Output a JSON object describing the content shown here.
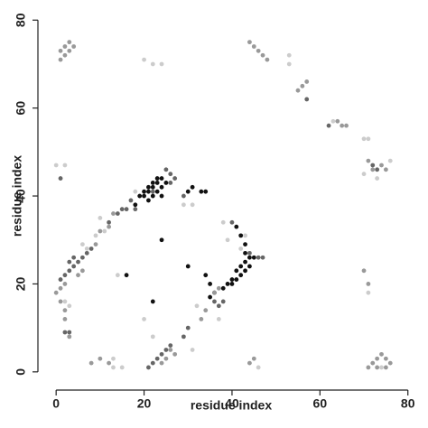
{
  "chart_data": {
    "type": "scatter",
    "x_label": "residue index",
    "y_label": "residue index",
    "xlim": [
      -2.5,
      81.7
    ],
    "ylim": [
      -2.5,
      81.7
    ],
    "xticks": [
      0,
      20,
      40,
      60,
      80
    ],
    "yticks": [
      0,
      20,
      40,
      60,
      80
    ],
    "series": [
      {
        "color": "#111111",
        "x": [
          19,
          20,
          20,
          21,
          21,
          22,
          22,
          23,
          23,
          24,
          22,
          23,
          24,
          25,
          24,
          21,
          30,
          33,
          34,
          31,
          40,
          41,
          42,
          43,
          44,
          41,
          42,
          43,
          40,
          39,
          38,
          36,
          35,
          41,
          42,
          43,
          43,
          44,
          45,
          16,
          24,
          30,
          22,
          34,
          35,
          18
        ],
        "values": [
          40,
          40,
          41,
          41,
          42,
          42,
          43,
          43,
          44,
          44,
          40,
          41,
          42,
          43,
          40,
          39,
          41,
          41,
          41,
          42,
          20,
          21,
          22,
          23,
          24,
          23,
          24,
          25,
          21,
          20,
          19,
          18,
          17,
          33,
          31,
          29,
          27,
          26,
          26,
          22,
          30,
          24,
          16,
          22,
          20,
          38
        ]
      },
      {
        "color": "#666666",
        "x": [
          17,
          15,
          16,
          14,
          12,
          18,
          25,
          26,
          27,
          22,
          26,
          3,
          4,
          5,
          6,
          7,
          8,
          2,
          1,
          3,
          4,
          44,
          46,
          47,
          38,
          36,
          37,
          25,
          26,
          24,
          23,
          22,
          21,
          29,
          30,
          57,
          72,
          73,
          2,
          3,
          40,
          29,
          1,
          62
        ],
        "values": [
          39,
          37,
          37,
          36,
          34,
          37,
          46,
          45,
          44,
          41,
          43,
          23,
          24,
          25,
          26,
          27,
          28,
          22,
          21,
          25,
          26,
          27,
          26,
          26,
          16,
          16,
          15,
          5,
          6,
          4,
          3,
          2,
          1,
          8,
          10,
          62,
          47,
          46,
          9,
          9,
          34,
          40,
          44,
          56
        ]
      },
      {
        "color": "#999999",
        "x": [
          1,
          2,
          3,
          4,
          2,
          3,
          1,
          45,
          46,
          47,
          48,
          44,
          56,
          57,
          55,
          64,
          65,
          66,
          71,
          72,
          74,
          75,
          1,
          2,
          2,
          3,
          0,
          1,
          2,
          5,
          6,
          8,
          10,
          12,
          25,
          24,
          26,
          27,
          72,
          73,
          74,
          75,
          76,
          71,
          73,
          75,
          44,
          45,
          9,
          10,
          12,
          13,
          36,
          37,
          33,
          34,
          70,
          71
        ],
        "values": [
          73,
          74,
          75,
          74,
          72,
          73,
          71,
          74,
          73,
          72,
          71,
          75,
          65,
          66,
          64,
          57,
          56,
          56,
          48,
          46,
          47,
          46,
          16,
          14,
          12,
          8,
          18,
          19,
          20,
          22,
          23,
          2,
          3,
          2,
          3,
          2,
          5,
          4,
          2,
          3,
          4,
          3,
          2,
          1,
          1,
          1,
          2,
          3,
          29,
          32,
          33,
          36,
          18,
          19,
          12,
          14,
          23,
          20
        ]
      },
      {
        "color": "#cccccc",
        "x": [
          20,
          22,
          24,
          53,
          53,
          70,
          71,
          63,
          0,
          2,
          70,
          73,
          76,
          71,
          6,
          7,
          9,
          11,
          13,
          15,
          13,
          31,
          31,
          29,
          37,
          32,
          20,
          22,
          3,
          2,
          74,
          46,
          42,
          43,
          38,
          39,
          14,
          18,
          10
        ],
        "values": [
          71,
          70,
          70,
          72,
          70,
          53,
          53,
          57,
          47,
          47,
          45,
          44,
          48,
          18,
          29,
          28,
          31,
          32,
          1,
          1,
          3,
          5,
          38,
          38,
          12,
          15,
          12,
          8,
          15,
          16,
          1,
          1,
          28,
          31,
          34,
          30,
          22,
          41,
          35
        ]
      }
    ]
  }
}
